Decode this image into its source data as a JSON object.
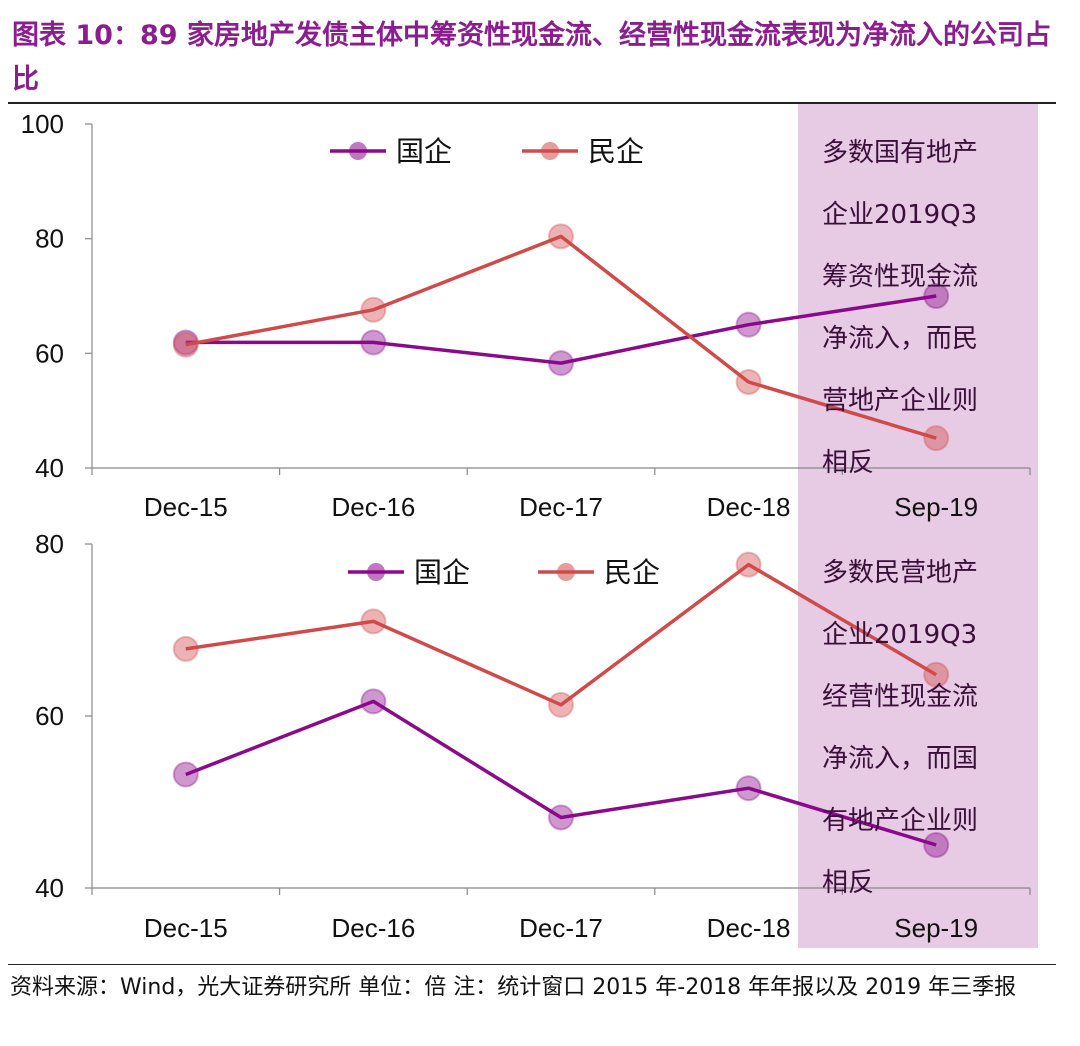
{
  "title": "图表 10：89 家房地产发债主体中筹资性现金流、经营性现金流表现为净流入的公司占比",
  "footer": "资料来源：Wind，光大证券研究所   单位：倍   注：统计窗口 2015 年-2018 年年报以及 2019 年三季报",
  "colors": {
    "state": "#8B0A8B",
    "private": "#D04A4A",
    "highlight": "#E7CBE4",
    "title": "#8B1E8F"
  },
  "chart_data": [
    {
      "type": "line",
      "categories": [
        "Dec-15",
        "Dec-16",
        "Dec-17",
        "Dec-18",
        "Sep-19"
      ],
      "ylim": [
        40,
        100
      ],
      "yticks": [
        40,
        60,
        80,
        100
      ],
      "series": [
        {
          "name": "国企",
          "values": [
            61.9,
            61.9,
            58.3,
            65,
            70
          ]
        },
        {
          "name": "民企",
          "values": [
            61.5,
            67.6,
            80.4,
            55,
            45.2
          ]
        }
      ],
      "highlight_category": "Sep-19",
      "annotation": "多数国有地产\n企业2019Q3\n筹资性现金流\n净流入，而民\n营地产企业则\n相反",
      "legend_position": "top"
    },
    {
      "type": "line",
      "categories": [
        "Dec-15",
        "Dec-16",
        "Dec-17",
        "Dec-18",
        "Sep-19"
      ],
      "ylim": [
        40,
        80
      ],
      "yticks": [
        40,
        60,
        80
      ],
      "series": [
        {
          "name": "国企",
          "values": [
            53.2,
            61.7,
            48.2,
            51.6,
            45
          ]
        },
        {
          "name": "民企",
          "values": [
            67.8,
            71,
            61.3,
            77.6,
            64.8
          ]
        }
      ],
      "highlight_category": "Sep-19",
      "annotation": "多数民营地产\n企业2019Q3\n经营性现金流\n净流入，而国\n有地产企业则\n相反",
      "legend_position": "top"
    }
  ]
}
